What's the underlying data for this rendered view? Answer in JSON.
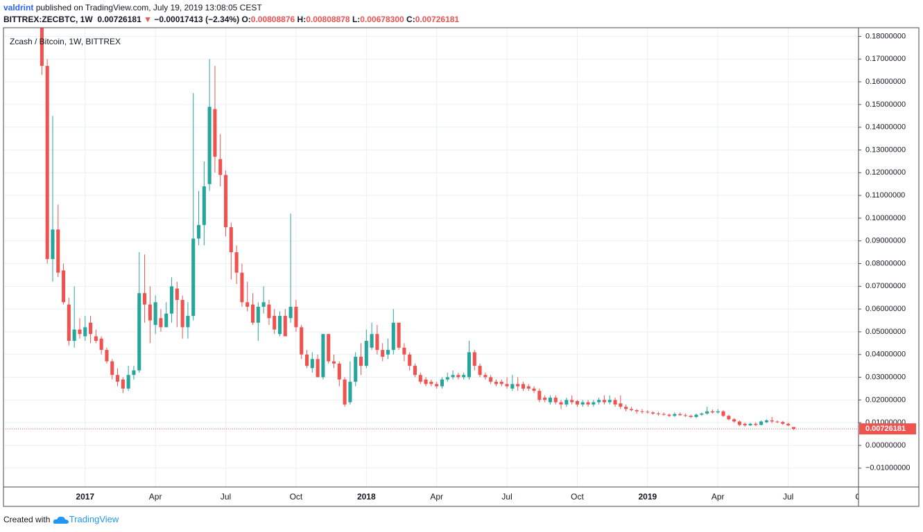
{
  "header": {
    "publisher": "valdrint",
    "published": "published on TradingView.com, July 19, 2019 13:08:05 CEST",
    "symbol": "BITTREX:ZECBTC, 1W",
    "last": "0.00726181",
    "change_arrow": "▼",
    "change": "−0.00017413 (−2.34%)",
    "ohlc": [
      {
        "label": "O:",
        "value": "0.00808876"
      },
      {
        "label": "H:",
        "value": "0.00808878"
      },
      {
        "label": "L:",
        "value": "0.00678300"
      },
      {
        "label": "C:",
        "value": "0.00726181"
      }
    ]
  },
  "footer": {
    "created": "Created with",
    "brand": "TradingView"
  },
  "chart_data": {
    "type": "candlestick",
    "title": "Zcash / Bitcoin, 1W, BITTREX",
    "up_color": "#26a69a",
    "down_color": "#ef5350",
    "grid": true,
    "last_price": {
      "value": 0.00726181,
      "label": "0.00726181"
    },
    "xlim": [
      -15.1,
      143.0
    ],
    "ylim": [
      -0.0183,
      0.1838
    ],
    "xticks": [
      {
        "value": 0,
        "label": "2017"
      },
      {
        "value": 13,
        "label": "Apr"
      },
      {
        "value": 26,
        "label": "Jul"
      },
      {
        "value": 39,
        "label": "Oct"
      },
      {
        "value": 52,
        "label": "2018"
      },
      {
        "value": 65,
        "label": "Apr"
      },
      {
        "value": 78,
        "label": "Jul"
      },
      {
        "value": 91,
        "label": "Oct"
      },
      {
        "value": 104,
        "label": "2019"
      },
      {
        "value": 117,
        "label": "Apr"
      },
      {
        "value": 130,
        "label": "Jul"
      },
      {
        "value": 143,
        "label": "O"
      }
    ],
    "yticks": [
      {
        "value": 0.18,
        "label": "0.18000000"
      },
      {
        "value": 0.17,
        "label": "0.17000000"
      },
      {
        "value": 0.16,
        "label": "0.16000000"
      },
      {
        "value": 0.15,
        "label": "0.15000000"
      },
      {
        "value": 0.14,
        "label": "0.14000000"
      },
      {
        "value": 0.13,
        "label": "0.13000000"
      },
      {
        "value": 0.12,
        "label": "0.12000000"
      },
      {
        "value": 0.11,
        "label": "0.11000000"
      },
      {
        "value": 0.1,
        "label": "0.10000000"
      },
      {
        "value": 0.09,
        "label": "0.09000000"
      },
      {
        "value": 0.08,
        "label": "0.08000000"
      },
      {
        "value": 0.07,
        "label": "0.07000000"
      },
      {
        "value": 0.06,
        "label": "0.06000000"
      },
      {
        "value": 0.05,
        "label": "0.05000000"
      },
      {
        "value": 0.04,
        "label": "0.04000000"
      },
      {
        "value": 0.03,
        "label": "0.03000000"
      },
      {
        "value": 0.02,
        "label": "0.02000000"
      },
      {
        "value": 0.01,
        "label": "0.01000000"
      },
      {
        "value": 0,
        "label": "0.00000000"
      },
      {
        "value": -0.01,
        "label": "−0.01000000"
      }
    ],
    "x": [
      -8,
      -7,
      -6,
      -5,
      -4,
      -3,
      -2,
      -1,
      0,
      1,
      2,
      3,
      4,
      5,
      6,
      7,
      8,
      9,
      10,
      11,
      12,
      13,
      14,
      15,
      16,
      17,
      18,
      19,
      20,
      21,
      22,
      23,
      24,
      25,
      26,
      27,
      28,
      29,
      30,
      31,
      32,
      33,
      34,
      35,
      36,
      37,
      38,
      39,
      40,
      41,
      42,
      43,
      44,
      45,
      46,
      47,
      48,
      49,
      50,
      51,
      52,
      53,
      54,
      55,
      56,
      57,
      58,
      59,
      60,
      61,
      62,
      63,
      64,
      65,
      66,
      67,
      68,
      69,
      70,
      71,
      72,
      73,
      74,
      75,
      76,
      77,
      78,
      79,
      80,
      81,
      82,
      83,
      84,
      85,
      86,
      87,
      88,
      89,
      90,
      91,
      92,
      93,
      94,
      95,
      96,
      97,
      98,
      99,
      100,
      101,
      102,
      103,
      104,
      105,
      106,
      107,
      108,
      109,
      110,
      111,
      112,
      113,
      114,
      115,
      116,
      117,
      118,
      119,
      120,
      121,
      122,
      123,
      124,
      125,
      126,
      127,
      128,
      129,
      130,
      131
    ],
    "open": [
      0.19,
      0.167,
      0.082,
      0.095,
      0.077,
      0.062,
      0.046,
      0.051,
      0.048,
      0.054,
      0.048,
      0.047,
      0.042,
      0.037,
      0.031,
      0.029,
      0.025,
      0.031,
      0.033,
      0.067,
      0.062,
      0.053,
      0.056,
      0.052,
      0.058,
      0.069,
      0.064,
      0.052,
      0.057,
      0.091,
      0.097,
      0.115,
      0.148,
      0.126,
      0.119,
      0.096,
      0.085,
      0.076,
      0.063,
      0.062,
      0.054,
      0.061,
      0.062,
      0.057,
      0.049,
      0.057,
      0.056,
      0.061,
      0.052,
      0.04,
      0.034,
      0.038,
      0.03,
      0.049,
      0.037,
      0.036,
      0.029,
      0.019,
      0.028,
      0.039,
      0.035,
      0.043,
      0.049,
      0.042,
      0.04,
      0.042,
      0.054,
      0.043,
      0.04,
      0.035,
      0.031,
      0.029,
      0.028,
      0.027,
      0.026,
      0.029,
      0.03,
      0.031,
      0.03,
      0.03,
      0.041,
      0.035,
      0.031,
      0.03,
      0.028,
      0.028,
      0.027,
      0.025,
      0.027,
      0.027,
      0.026,
      0.025,
      0.024,
      0.021,
      0.019,
      0.021,
      0.019,
      0.018,
      0.02,
      0.0195,
      0.018,
      0.019,
      0.018,
      0.019,
      0.02,
      0.019,
      0.02,
      0.0185,
      0.017,
      0.016,
      0.0155,
      0.015,
      0.0148,
      0.0145,
      0.014,
      0.0138,
      0.0135,
      0.013,
      0.0138,
      0.0133,
      0.013,
      0.0125,
      0.0135,
      0.014,
      0.015,
      0.0145,
      0.015,
      0.013,
      0.0115,
      0.0105,
      0.0095,
      0.0088,
      0.0095,
      0.009,
      0.0102,
      0.011,
      0.0105,
      0.0103,
      0.0095,
      0.00808876
    ],
    "high": [
      0.195,
      0.17,
      0.145,
      0.106,
      0.08,
      0.065,
      0.07,
      0.056,
      0.057,
      0.057,
      0.051,
      0.048,
      0.043,
      0.038,
      0.034,
      0.03,
      0.035,
      0.035,
      0.085,
      0.084,
      0.07,
      0.066,
      0.06,
      0.063,
      0.074,
      0.072,
      0.066,
      0.063,
      0.155,
      0.112,
      0.125,
      0.17,
      0.167,
      0.137,
      0.121,
      0.098,
      0.088,
      0.08,
      0.072,
      0.067,
      0.063,
      0.07,
      0.064,
      0.06,
      0.059,
      0.06,
      0.102,
      0.064,
      0.053,
      0.042,
      0.041,
      0.04,
      0.049,
      0.049,
      0.04,
      0.037,
      0.03,
      0.037,
      0.041,
      0.045,
      0.051,
      0.054,
      0.053,
      0.045,
      0.047,
      0.06,
      0.054,
      0.045,
      0.041,
      0.036,
      0.032,
      0.03,
      0.029,
      0.028,
      0.03,
      0.032,
      0.033,
      0.032,
      0.032,
      0.046,
      0.042,
      0.036,
      0.032,
      0.031,
      0.029,
      0.029,
      0.03,
      0.031,
      0.03,
      0.028,
      0.027,
      0.026,
      0.025,
      0.022,
      0.022,
      0.022,
      0.02,
      0.021,
      0.022,
      0.02,
      0.02,
      0.02,
      0.02,
      0.021,
      0.022,
      0.022,
      0.021,
      0.022,
      0.018,
      0.017,
      0.016,
      0.016,
      0.0155,
      0.015,
      0.0148,
      0.0145,
      0.014,
      0.0145,
      0.0145,
      0.014,
      0.0135,
      0.014,
      0.0145,
      0.017,
      0.0158,
      0.016,
      0.0155,
      0.0135,
      0.012,
      0.011,
      0.01,
      0.01,
      0.0102,
      0.011,
      0.0115,
      0.0125,
      0.011,
      0.0108,
      0.01,
      0.00808878
    ],
    "low": [
      0.163,
      0.08,
      0.072,
      0.074,
      0.062,
      0.044,
      0.043,
      0.047,
      0.046,
      0.045,
      0.045,
      0.04,
      0.036,
      0.029,
      0.026,
      0.023,
      0.024,
      0.029,
      0.032,
      0.054,
      0.045,
      0.049,
      0.05,
      0.052,
      0.054,
      0.052,
      0.047,
      0.047,
      0.055,
      0.088,
      0.088,
      0.112,
      0.12,
      0.114,
      0.092,
      0.073,
      0.071,
      0.061,
      0.059,
      0.053,
      0.046,
      0.058,
      0.053,
      0.049,
      0.048,
      0.048,
      0.054,
      0.05,
      0.038,
      0.034,
      0.032,
      0.03,
      0.029,
      0.036,
      0.034,
      0.026,
      0.017,
      0.018,
      0.026,
      0.031,
      0.034,
      0.042,
      0.04,
      0.037,
      0.038,
      0.04,
      0.042,
      0.037,
      0.033,
      0.03,
      0.027,
      0.026,
      0.026,
      0.025,
      0.025,
      0.028,
      0.029,
      0.029,
      0.029,
      0.029,
      0.033,
      0.03,
      0.029,
      0.027,
      0.026,
      0.026,
      0.025,
      0.024,
      0.024,
      0.024,
      0.024,
      0.023,
      0.019,
      0.019,
      0.018,
      0.018,
      0.016,
      0.017,
      0.018,
      0.017,
      0.017,
      0.017,
      0.017,
      0.018,
      0.018,
      0.018,
      0.017,
      0.016,
      0.015,
      0.015,
      0.014,
      0.014,
      0.014,
      0.0135,
      0.013,
      0.013,
      0.0125,
      0.0125,
      0.013,
      0.0125,
      0.012,
      0.012,
      0.013,
      0.0135,
      0.014,
      0.014,
      0.0125,
      0.011,
      0.01,
      0.0085,
      0.0083,
      0.0085,
      0.0085,
      0.0088,
      0.0098,
      0.0098,
      0.0098,
      0.009,
      0.0085,
      0.006783
    ],
    "close": [
      0.167,
      0.082,
      0.095,
      0.076,
      0.063,
      0.046,
      0.051,
      0.049,
      0.052,
      0.049,
      0.046,
      0.042,
      0.037,
      0.031,
      0.028,
      0.025,
      0.031,
      0.033,
      0.067,
      0.062,
      0.055,
      0.063,
      0.052,
      0.058,
      0.07,
      0.064,
      0.052,
      0.057,
      0.091,
      0.097,
      0.114,
      0.149,
      0.127,
      0.119,
      0.096,
      0.085,
      0.076,
      0.063,
      0.061,
      0.054,
      0.061,
      0.063,
      0.056,
      0.051,
      0.057,
      0.048,
      0.061,
      0.052,
      0.04,
      0.035,
      0.038,
      0.03,
      0.049,
      0.037,
      0.036,
      0.029,
      0.018,
      0.028,
      0.039,
      0.035,
      0.046,
      0.049,
      0.042,
      0.039,
      0.042,
      0.054,
      0.043,
      0.04,
      0.035,
      0.031,
      0.028,
      0.027,
      0.027,
      0.026,
      0.029,
      0.03,
      0.031,
      0.03,
      0.031,
      0.041,
      0.035,
      0.031,
      0.03,
      0.028,
      0.027,
      0.027,
      0.026,
      0.027,
      0.026,
      0.025,
      0.025,
      0.024,
      0.02,
      0.02,
      0.021,
      0.019,
      0.018,
      0.02,
      0.019,
      0.018,
      0.019,
      0.018,
      0.019,
      0.02,
      0.019,
      0.02,
      0.018,
      0.017,
      0.016,
      0.0155,
      0.015,
      0.0148,
      0.0145,
      0.014,
      0.0138,
      0.0135,
      0.013,
      0.0138,
      0.0133,
      0.013,
      0.0125,
      0.0135,
      0.014,
      0.015,
      0.0145,
      0.015,
      0.013,
      0.0115,
      0.0105,
      0.009,
      0.0088,
      0.0095,
      0.009,
      0.0105,
      0.011,
      0.0105,
      0.0103,
      0.0095,
      0.0088,
      0.00726181
    ]
  }
}
